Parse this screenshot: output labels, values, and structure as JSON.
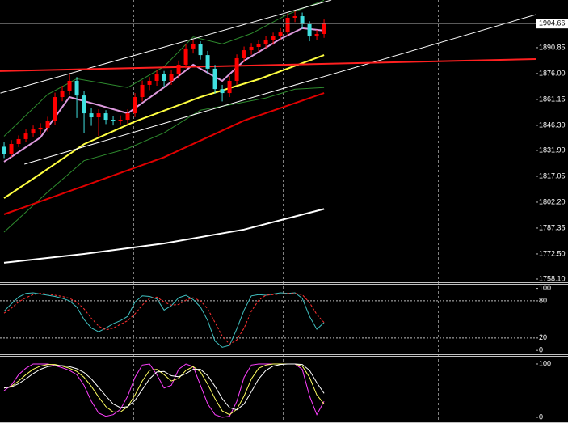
{
  "chart_data": [
    {
      "type": "candlestick",
      "xlim": [
        -0.56,
        73.1
      ],
      "ylim": [
        1756.7,
        1918.2
      ],
      "bull_color": "#ff0000",
      "bear_color": "#40e0e0",
      "open": [
        1834.0,
        1830.0,
        1835.6,
        1838.4,
        1841.6,
        1843.9,
        1844.9,
        1848.6,
        1862.5,
        1866.2,
        1871.8,
        1863.4,
        1853.2,
        1850.9,
        1853.2,
        1849.5,
        1848.6,
        1849.5,
        1853.2,
        1862.5,
        1869.5,
        1871.8,
        1875.5,
        1871.8,
        1875.5,
        1881.1,
        1890.4,
        1892.7,
        1886.6,
        1878.8,
        1867.1,
        1864.8,
        1871.8,
        1884.8,
        1889.4,
        1891.3,
        1892.7,
        1895.0,
        1897.3,
        1899.6,
        1908.0,
        1908.9,
        1904.3,
        1897.3,
        1898.7
      ],
      "high": [
        1836.5,
        1837.8,
        1840.5,
        1843.9,
        1846.2,
        1847.5,
        1851.2,
        1865.0,
        1869.0,
        1875.5,
        1874.0,
        1866.0,
        1856.0,
        1855.5,
        1855.0,
        1851.5,
        1852.0,
        1855.5,
        1864.8,
        1872.0,
        1874.0,
        1878.0,
        1877.5,
        1877.8,
        1883.5,
        1893.0,
        1895.5,
        1894.5,
        1889.0,
        1881.0,
        1869.5,
        1874.5,
        1887.0,
        1891.5,
        1893.5,
        1895.0,
        1897.5,
        1899.5,
        1902.0,
        1910.5,
        1912.0,
        1911.0,
        1906.0,
        1901.0,
        1907.0
      ],
      "low": [
        1827.5,
        1828.0,
        1833.8,
        1836.5,
        1839.8,
        1841.0,
        1842.7,
        1846.5,
        1860.1,
        1864.0,
        1850.5,
        1842.0,
        1846.0,
        1840.0,
        1847.0,
        1846.2,
        1846.5,
        1847.2,
        1851.0,
        1860.0,
        1866.5,
        1869.0,
        1868.5,
        1869.5,
        1873.0,
        1879.0,
        1887.5,
        1884.0,
        1876.0,
        1864.5,
        1860.0,
        1862.5,
        1869.5,
        1882.5,
        1886.8,
        1888.5,
        1890.5,
        1892.5,
        1895.0,
        1897.5,
        1905.5,
        1901.5,
        1894.5,
        1895.0,
        1896.5
      ],
      "close": [
        1830.0,
        1835.6,
        1838.4,
        1841.6,
        1843.9,
        1844.9,
        1848.6,
        1862.5,
        1866.2,
        1871.8,
        1863.4,
        1853.2,
        1850.9,
        1853.2,
        1849.5,
        1848.6,
        1849.5,
        1853.2,
        1862.5,
        1869.5,
        1871.8,
        1875.5,
        1871.8,
        1875.5,
        1881.1,
        1890.4,
        1892.7,
        1886.6,
        1878.8,
        1867.1,
        1864.8,
        1871.8,
        1884.8,
        1889.4,
        1891.3,
        1892.7,
        1895.0,
        1897.3,
        1899.6,
        1908.0,
        1908.9,
        1904.3,
        1897.3,
        1898.7,
        1904.66
      ],
      "overlays": [
        {
          "kind": "band",
          "color": "#2e8b2e",
          "x": [
            0,
            6,
            10,
            17,
            22,
            26,
            30,
            34,
            39,
            44
          ],
          "values": [
            1840,
            1864,
            1873,
            1868,
            1880,
            1897,
            1893,
            1899,
            1910,
            1918
          ]
        },
        {
          "kind": "band",
          "color": "#2e8b2e",
          "x": [
            0,
            6,
            11,
            17,
            22,
            27,
            31,
            36,
            40,
            44
          ],
          "values": [
            1785,
            1808,
            1826,
            1833,
            1842,
            1855,
            1858,
            1862,
            1867,
            1868
          ]
        },
        {
          "kind": "ma",
          "color": "#ffffff",
          "x": [
            0,
            11,
            22,
            33,
            44
          ],
          "values": [
            1767.4,
            1772.5,
            1778.5,
            1786.5,
            1798.3
          ]
        },
        {
          "kind": "ma",
          "color": "#e00000",
          "x": [
            0,
            11,
            22,
            33,
            44
          ],
          "values": [
            1795.2,
            1811.5,
            1828,
            1849,
            1864.8
          ]
        },
        {
          "kind": "ma",
          "color": "#ffff40",
          "x": [
            0,
            5,
            11,
            18,
            27,
            35,
            44
          ],
          "values": [
            1804.5,
            1818.4,
            1835.5,
            1848.5,
            1862.5,
            1872.7,
            1886.6
          ]
        },
        {
          "kind": "ma",
          "color": "#dd99dd",
          "x": [
            0,
            5,
            9,
            13,
            17,
            22,
            26,
            30,
            33,
            38,
            41,
            44
          ],
          "values": [
            1825.4,
            1839.3,
            1862.5,
            1857.9,
            1853.2,
            1868.1,
            1881.1,
            1871.8,
            1883.4,
            1895.9,
            1902,
            1900.6
          ]
        },
        {
          "kind": "trendline",
          "color": "#ffffff",
          "x": [
            -0.5,
            45
          ],
          "values": [
            1864.8,
            1918.2
          ]
        },
        {
          "kind": "trendline",
          "color": "#ffffff",
          "x": [
            2.8,
            73.1
          ],
          "values": [
            1824.0,
            1909.8
          ]
        },
        {
          "kind": "level",
          "color": "#ff2020",
          "x": [
            -0.56,
            73.1
          ],
          "values": [
            1877.4,
            1884.3
          ]
        }
      ],
      "yticks": [
        1890.85,
        {
          "value": 1876,
          "label": "1876.00"
        },
        1861.15,
        {
          "value": 1846.3,
          "label": "1846.30"
        },
        {
          "value": 1831.9,
          "label": "1831.90"
        },
        1817.05,
        {
          "value": 1802.2,
          "label": "1802.20"
        },
        1787.35,
        {
          "value": 1772.5,
          "label": "1772.50"
        },
        {
          "value": 1758.1,
          "label": "1758.10"
        }
      ],
      "last_price": 1904.66
    },
    {
      "type": "line",
      "xlim": [
        -0.56,
        73.1
      ],
      "ylim": [
        -5,
        106
      ],
      "yticks": [
        100,
        80,
        20,
        0
      ],
      "levels": [
        80,
        20
      ],
      "series": [
        {
          "color": "#40c0c0",
          "style": "solid",
          "values": [
            63,
            75,
            86,
            92,
            93,
            91,
            89,
            87,
            84,
            80,
            70,
            50,
            36,
            30,
            36,
            43,
            48,
            55,
            78,
            88,
            87,
            83,
            65,
            72,
            85,
            89,
            82,
            70,
            48,
            15,
            5,
            8,
            35,
            65,
            88,
            90,
            89,
            91,
            93,
            92,
            93,
            84,
            55,
            34,
            45
          ]
        },
        {
          "color": "#ff3030",
          "style": "dashed",
          "values": [
            60,
            68,
            78,
            85,
            90,
            92,
            91,
            89,
            87,
            84,
            78,
            67,
            52,
            39,
            33,
            36,
            42,
            48,
            59,
            73,
            84,
            86,
            78,
            73,
            74,
            81,
            85,
            80,
            67,
            45,
            23,
            10,
            17,
            36,
            63,
            81,
            89,
            90,
            91,
            92,
            92,
            90,
            77,
            58,
            45
          ]
        }
      ]
    },
    {
      "type": "line",
      "xlim": [
        -0.56,
        73.1
      ],
      "ylim": [
        -7.6,
        113.6
      ],
      "yticks": [
        100,
        0
      ],
      "levels": [],
      "series": [
        {
          "color": "#ff40ff",
          "style": "solid",
          "values": [
            50,
            60,
            80,
            92,
            100,
            100,
            100,
            97,
            93,
            88,
            80,
            60,
            30,
            8,
            2,
            5,
            15,
            40,
            75,
            98,
            100,
            80,
            55,
            60,
            90,
            100,
            95,
            60,
            25,
            5,
            0,
            2,
            30,
            75,
            98,
            100,
            100,
            100,
            100,
            100,
            100,
            90,
            40,
            5,
            30
          ]
        },
        {
          "color": "#ffff60",
          "style": "solid",
          "values": [
            55,
            58,
            68,
            80,
            90,
            96,
            99,
            99,
            96,
            92,
            86,
            75,
            58,
            38,
            20,
            10,
            10,
            20,
            42,
            68,
            88,
            90,
            80,
            68,
            73,
            88,
            95,
            85,
            62,
            35,
            12,
            5,
            15,
            40,
            72,
            92,
            98,
            100,
            100,
            100,
            100,
            96,
            75,
            42,
            25
          ]
        },
        {
          "color": "#ffffff",
          "style": "solid",
          "values": [
            55,
            57,
            63,
            72,
            82,
            90,
            95,
            97,
            97,
            95,
            91,
            84,
            72,
            56,
            40,
            25,
            18,
            20,
            32,
            52,
            72,
            85,
            86,
            78,
            76,
            82,
            90,
            90,
            78,
            58,
            35,
            18,
            14,
            25,
            48,
            72,
            88,
            96,
            99,
            100,
            100,
            99,
            88,
            65,
            45
          ]
        }
      ]
    }
  ]
}
